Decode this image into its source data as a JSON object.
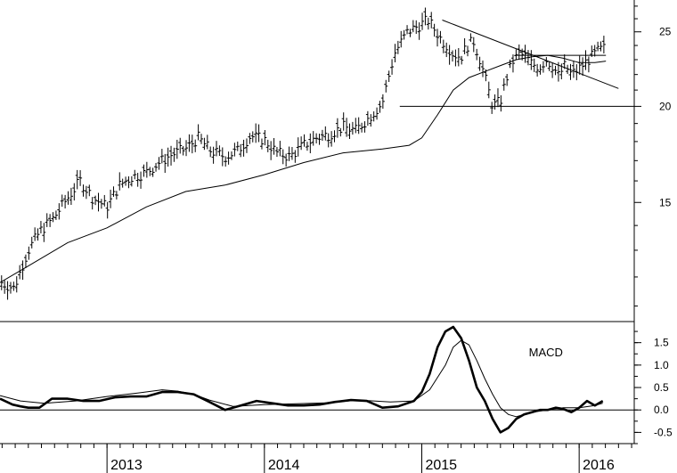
{
  "chart_data": [
    {
      "type": "line",
      "panel": "price",
      "title": "",
      "xlabel": "",
      "ylabel": "",
      "x_range": [
        2012.32,
        2016.35
      ],
      "ylim": [
        10.5,
        27.5
      ],
      "y_ticks": [
        15,
        20,
        25
      ],
      "x_ticks": [
        "2013",
        "2014",
        "2015",
        "2016"
      ],
      "x_tick_positions": [
        2013,
        2014,
        2015,
        2016
      ],
      "grid": false,
      "legend": "none",
      "series": [
        {
          "kind": "ohlc-bars",
          "style": "price",
          "x": [
            2012.33,
            2012.41,
            2012.5,
            2012.58,
            2012.66,
            2012.75,
            2012.83,
            2012.91,
            2013.0,
            2013.08,
            2013.16,
            2013.25,
            2013.33,
            2013.41,
            2013.5,
            2013.58,
            2013.66,
            2013.75,
            2013.83,
            2013.91,
            2014.0,
            2014.08,
            2014.16,
            2014.25,
            2014.33,
            2014.41,
            2014.5,
            2014.58,
            2014.66,
            2014.75,
            2014.83,
            2014.91,
            2015.0,
            2015.04,
            2015.08,
            2015.12,
            2015.16,
            2015.2,
            2015.25,
            2015.29,
            2015.33,
            2015.37,
            2015.41,
            2015.45,
            2015.5,
            2015.54,
            2015.58,
            2015.62,
            2015.66,
            2015.7,
            2015.75,
            2015.79,
            2015.83,
            2015.87,
            2015.91,
            2015.95,
            2016.0,
            2016.04,
            2016.08,
            2016.12,
            2016.16
          ],
          "values": [
            11.8,
            11.6,
            13.0,
            13.8,
            14.3,
            15.2,
            16.0,
            15.2,
            14.8,
            15.8,
            16.2,
            16.4,
            16.9,
            17.3,
            17.6,
            18.2,
            17.5,
            17.2,
            17.5,
            18.3,
            18.1,
            17.4,
            17.2,
            17.8,
            18.2,
            18.4,
            18.8,
            18.6,
            19.3,
            20.2,
            23.5,
            25.0,
            25.6,
            25.9,
            25.2,
            24.5,
            24.0,
            23.4,
            23.2,
            24.0,
            24.3,
            23.0,
            21.5,
            20.0,
            20.3,
            21.8,
            22.9,
            23.4,
            23.2,
            22.7,
            22.5,
            23.0,
            22.6,
            21.9,
            22.6,
            22.0,
            22.4,
            22.8,
            23.2,
            23.6,
            23.8
          ]
        },
        {
          "kind": "line",
          "style": "moving-average",
          "x": [
            2012.32,
            2012.5,
            2012.75,
            2013.0,
            2013.25,
            2013.5,
            2013.75,
            2014.0,
            2014.25,
            2014.5,
            2014.75,
            2014.92,
            2015.0,
            2015.1,
            2015.2,
            2015.3,
            2015.4,
            2015.5,
            2015.6,
            2015.7,
            2015.8,
            2015.9,
            2016.0,
            2016.1,
            2016.17
          ],
          "values": [
            11.8,
            12.4,
            13.3,
            13.9,
            14.8,
            15.5,
            15.8,
            16.3,
            16.9,
            17.4,
            17.6,
            17.8,
            18.2,
            19.5,
            21.0,
            21.8,
            22.2,
            22.6,
            23.0,
            23.2,
            23.3,
            23.1,
            22.8,
            22.8,
            22.9
          ]
        },
        {
          "kind": "trendline",
          "style": "resistance",
          "x": [
            2015.13,
            2016.25
          ],
          "values": [
            25.9,
            21.1
          ]
        },
        {
          "kind": "trendline",
          "style": "support",
          "x": [
            2014.86,
            2016.35
          ],
          "values": [
            20.0,
            20.0
          ]
        },
        {
          "kind": "trendline",
          "style": "horizontal",
          "x": [
            2015.59,
            2016.17
          ],
          "values": [
            23.3,
            23.3
          ]
        }
      ]
    },
    {
      "type": "line",
      "panel": "indicator",
      "title": "",
      "xlabel": "",
      "ylabel": "",
      "x_range": [
        2012.32,
        2016.35
      ],
      "ylim": [
        -0.75,
        1.95
      ],
      "y_ticks": [
        -0.5,
        0.0,
        0.5,
        1.0,
        1.5
      ],
      "y_tick_labels": [
        "-0.5",
        "0.0",
        "0.5",
        "1.0",
        "1.5"
      ],
      "annotations": [
        {
          "text": "MACD",
          "x": 2015.68,
          "y": 1.2
        }
      ],
      "grid": false,
      "legend": "none",
      "series": [
        {
          "kind": "line",
          "style": "macd",
          "x": [
            2012.32,
            2012.4,
            2012.45,
            2012.5,
            2012.57,
            2012.65,
            2012.75,
            2012.85,
            2012.95,
            2013.05,
            2013.15,
            2013.25,
            2013.35,
            2013.45,
            2013.55,
            2013.65,
            2013.75,
            2013.85,
            2013.95,
            2014.05,
            2014.15,
            2014.25,
            2014.35,
            2014.45,
            2014.55,
            2014.65,
            2014.75,
            2014.85,
            2014.95,
            2015.0,
            2015.05,
            2015.1,
            2015.15,
            2015.2,
            2015.25,
            2015.3,
            2015.35,
            2015.4,
            2015.45,
            2015.5,
            2015.55,
            2015.6,
            2015.65,
            2015.7,
            2015.75,
            2015.8,
            2015.85,
            2015.9,
            2015.95,
            2016.0,
            2016.05,
            2016.1,
            2016.15
          ],
          "values": [
            0.25,
            0.12,
            0.08,
            0.05,
            0.05,
            0.25,
            0.25,
            0.2,
            0.2,
            0.28,
            0.3,
            0.3,
            0.4,
            0.4,
            0.35,
            0.18,
            0.0,
            0.1,
            0.2,
            0.15,
            0.1,
            0.1,
            0.12,
            0.18,
            0.22,
            0.2,
            0.05,
            0.08,
            0.2,
            0.4,
            0.8,
            1.4,
            1.75,
            1.85,
            1.6,
            1.1,
            0.5,
            0.2,
            -0.2,
            -0.5,
            -0.4,
            -0.2,
            -0.1,
            -0.05,
            0.0,
            0.0,
            0.05,
            0.02,
            -0.05,
            0.05,
            0.2,
            0.1,
            0.2
          ]
        },
        {
          "kind": "line",
          "style": "signal",
          "x": [
            2012.32,
            2012.45,
            2012.6,
            2012.8,
            2013.0,
            2013.2,
            2013.35,
            2013.45,
            2013.55,
            2013.65,
            2013.8,
            2014.0,
            2014.2,
            2014.4,
            2014.6,
            2014.8,
            2014.95,
            2015.05,
            2015.15,
            2015.2,
            2015.25,
            2015.3,
            2015.35,
            2015.4,
            2015.45,
            2015.5,
            2015.55,
            2015.6,
            2015.7,
            2015.8,
            2015.9,
            2016.0,
            2016.1,
            2016.15
          ],
          "values": [
            0.32,
            0.2,
            0.15,
            0.2,
            0.3,
            0.38,
            0.45,
            0.42,
            0.35,
            0.22,
            0.08,
            0.12,
            0.14,
            0.16,
            0.22,
            0.18,
            0.2,
            0.45,
            1.0,
            1.4,
            1.55,
            1.45,
            1.1,
            0.7,
            0.35,
            0.05,
            -0.1,
            -0.15,
            -0.05,
            0.0,
            0.05,
            0.05,
            0.1,
            0.15
          ]
        },
        {
          "kind": "line",
          "style": "zero-line",
          "x": [
            2012.32,
            2016.35
          ],
          "values": [
            0.0,
            0.0
          ]
        }
      ]
    }
  ]
}
